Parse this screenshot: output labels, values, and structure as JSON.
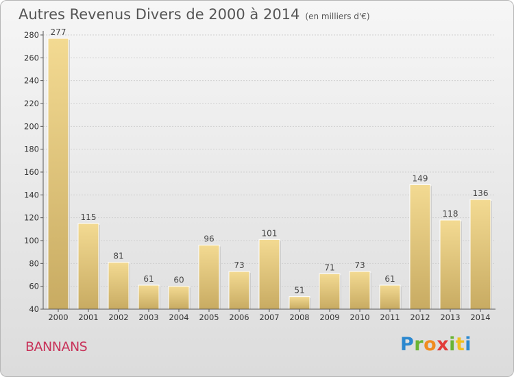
{
  "title": "Autres Revenus Divers de 2000 à 2014",
  "subtitle": "(en milliers d'€)",
  "commune": "BANNANS",
  "logo": {
    "letters": [
      "P",
      "r",
      "o",
      "x",
      "i",
      "t",
      "i"
    ],
    "colors": [
      "#2b88cf",
      "#69b434",
      "#f08b1f",
      "#e23a3a",
      "#69b434",
      "#f0bf1f",
      "#2b88cf"
    ]
  },
  "chart_data": {
    "type": "bar",
    "title": "Autres Revenus Divers de 2000 à 2014",
    "subtitle": "(en milliers d'€)",
    "categories": [
      "2000",
      "2001",
      "2002",
      "2003",
      "2004",
      "2005",
      "2006",
      "2007",
      "2008",
      "2009",
      "2010",
      "2011",
      "2012",
      "2013",
      "2014"
    ],
    "values": [
      277,
      115,
      81,
      61,
      60,
      96,
      73,
      101,
      51,
      71,
      73,
      61,
      149,
      118,
      136
    ],
    "ylim": [
      40,
      280
    ],
    "yticks": [
      40,
      60,
      80,
      100,
      120,
      140,
      160,
      180,
      200,
      220,
      240,
      260,
      280
    ],
    "grid": true,
    "bar_color": "#e6cc86",
    "data_labels": true
  }
}
